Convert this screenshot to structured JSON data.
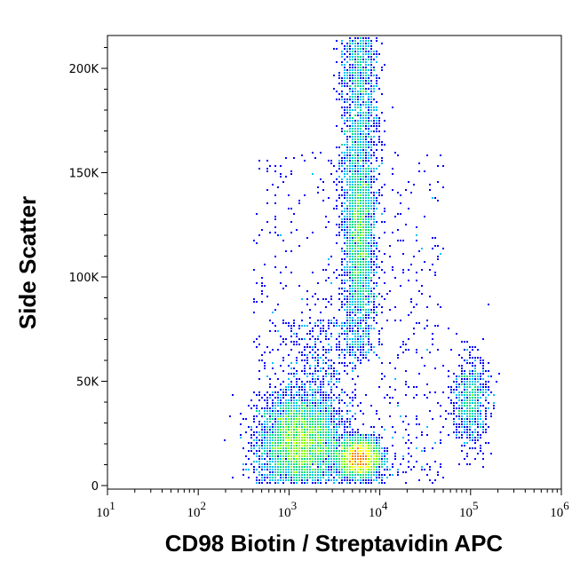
{
  "chart_data": {
    "type": "scatter",
    "subtype": "flow-cytometry density plot",
    "xlabel": "CD98 Biotin / Streptavidin APC",
    "ylabel": "Side Scatter",
    "x_scale": "log",
    "xlim": [
      10,
      1000000
    ],
    "ylim": [
      0,
      215000
    ],
    "x_ticks": [
      {
        "base": "10",
        "exp": "1"
      },
      {
        "base": "10",
        "exp": "2"
      },
      {
        "base": "10",
        "exp": "3"
      },
      {
        "base": "10",
        "exp": "4"
      },
      {
        "base": "10",
        "exp": "5"
      },
      {
        "base": "10",
        "exp": "6"
      }
    ],
    "y_ticks": [
      {
        "value": 0,
        "label": "0"
      },
      {
        "value": 50000,
        "label": "50K"
      },
      {
        "value": 100000,
        "label": "100K"
      },
      {
        "value": 150000,
        "label": "150K"
      },
      {
        "value": 200000,
        "label": "200K"
      }
    ],
    "grid": false,
    "density_colors": [
      "#0000ff",
      "#00c0ff",
      "#00e080",
      "#80ff00",
      "#ffff00",
      "#ff8000",
      "#ff0000"
    ],
    "populations": [
      {
        "x_center": 1300,
        "y_center": 20000,
        "density": "high"
      },
      {
        "x_center": 6000,
        "y_center": 13000,
        "density": "highest"
      },
      {
        "x_center": 6000,
        "y_range": [
          60000,
          215000
        ],
        "density": "medium"
      },
      {
        "x_center": 100000,
        "y_center": 40000,
        "density": "medium"
      }
    ]
  }
}
